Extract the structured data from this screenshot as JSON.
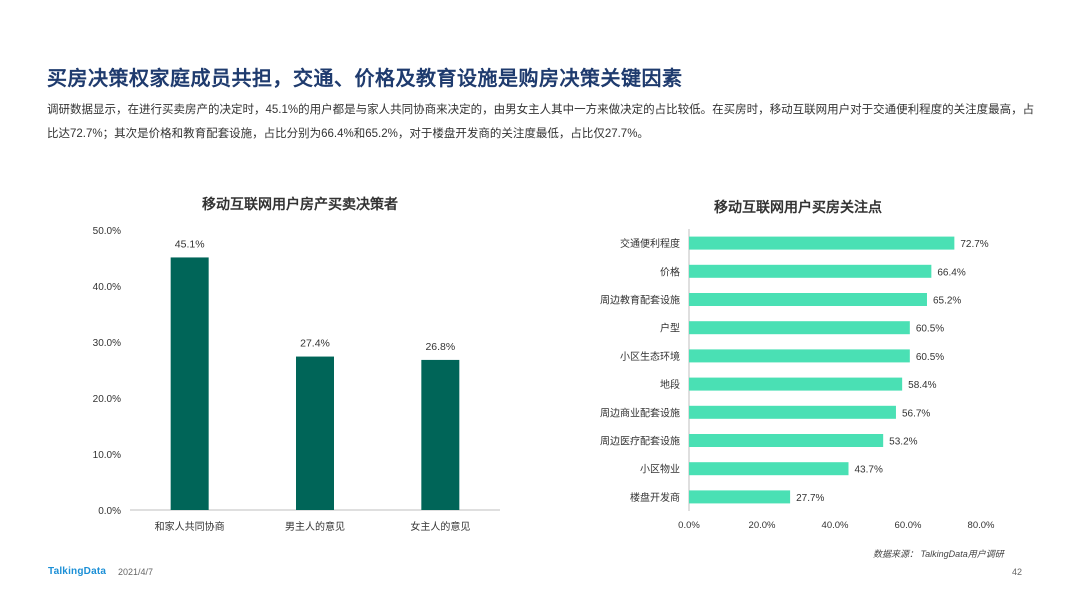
{
  "title": "买房决策权家庭成员共担，交通、价格及教育设施是购房决策关键因素",
  "description": "调研数据显示，在进行买卖房产的决定时，45.1%的用户都是与家人共同协商来决定的，由男女主人其中一方来做决定的占比较低。在买房时，移动互联网用户对于交通便利程度的关注度最高，占比达72.7%；其次是价格和教育配套设施，占比分别为66.4%和65.2%，对于楼盘开发商的关注度最低，占比仅27.7%。",
  "source": "数据来源： TalkingData用户调研",
  "footer": {
    "logo": "TalkingData",
    "date": "2021/4/7",
    "page": "42"
  },
  "colors": {
    "left_bar": "#006558",
    "right_bar": "#4ae0b4",
    "title": "#1f3b6e"
  },
  "chart_data": [
    {
      "type": "bar",
      "title": "移动互联网用户房产买卖决策者",
      "categories": [
        "和家人共同协商",
        "男主人的意见",
        "女主人的意见"
      ],
      "values": [
        45.1,
        27.4,
        26.8
      ],
      "value_labels": [
        "45.1%",
        "27.4%",
        "26.8%"
      ],
      "ylim": [
        0,
        50
      ],
      "yticks": [
        "0.0%",
        "10.0%",
        "20.0%",
        "30.0%",
        "40.0%",
        "50.0%"
      ],
      "grid": false
    },
    {
      "type": "bar",
      "orientation": "horizontal",
      "title": "移动互联网用户买房关注点",
      "categories": [
        "交通便利程度",
        "价格",
        "周边教育配套设施",
        "户型",
        "小区生态环境",
        "地段",
        "周边商业配套设施",
        "周边医疗配套设施",
        "小区物业",
        "楼盘开发商"
      ],
      "values": [
        72.7,
        66.4,
        65.2,
        60.5,
        60.5,
        58.4,
        56.7,
        53.2,
        43.7,
        27.7
      ],
      "value_labels": [
        "72.7%",
        "66.4%",
        "65.2%",
        "60.5%",
        "60.5%",
        "58.4%",
        "56.7%",
        "53.2%",
        "43.7%",
        "27.7%"
      ],
      "xlim": [
        0,
        80
      ],
      "xticks": [
        "0.0%",
        "20.0%",
        "40.0%",
        "60.0%",
        "80.0%"
      ],
      "grid": false
    }
  ]
}
